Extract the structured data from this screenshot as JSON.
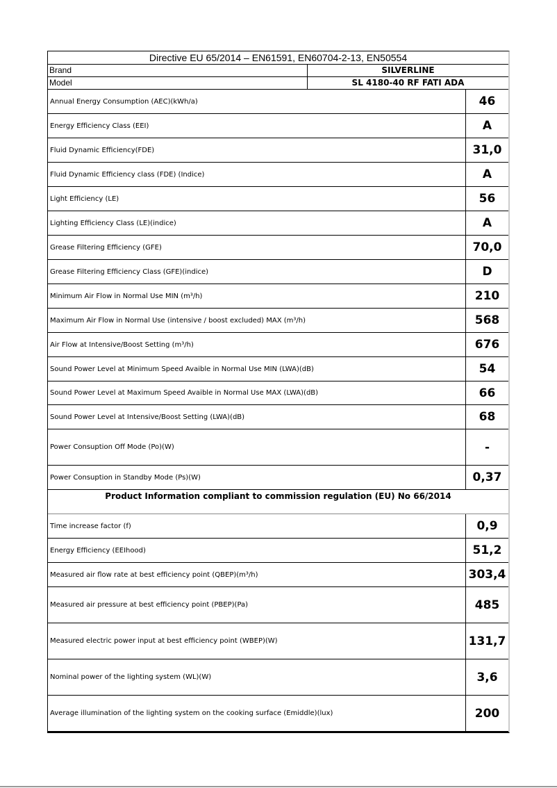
{
  "header": {
    "title": "Directive EU 65/2014 – EN61591, EN60704-2-13, EN50554"
  },
  "brand": {
    "label": "Brand",
    "value": "SILVERLINE"
  },
  "model": {
    "label": "Model",
    "value": "SL 4180-40 RF FATI ADA"
  },
  "rows": [
    {
      "label": "Annual Energy Consumption (AEC)(kWh/a)",
      "value": "46"
    },
    {
      "label": "Energy Efficiency Class (EEI)",
      "value": "A"
    },
    {
      "label": "Fluid Dynamic Efficiency(FDE)",
      "value": "31,0"
    },
    {
      "label": "Fluid Dynamic Efficiency class (FDE) (Indice)",
      "value": "A"
    },
    {
      "label": "Light Efficiency (LE)",
      "value": "56"
    },
    {
      "label": "Lighting Efficiency Class (LE)(indice)",
      "value": "A"
    },
    {
      "label": "Grease Filtering Efficiency (GFE)",
      "value": "70,0"
    },
    {
      "label": "Grease Filtering Efficiency Class (GFE)(indice)",
      "value": "D"
    },
    {
      "label": "Minimum Air Flow in Normal Use MIN (m³/h)",
      "value": "210"
    },
    {
      "label": "Maximum Air Flow in Normal Use  (intensive / boost excluded) MAX (m³/h)",
      "value": "568"
    },
    {
      "label": "Air Flow at Intensive/Boost Setting (m³/h)",
      "value": "676"
    },
    {
      "label": "Sound Power Level at Minimum Speed Avaible in Normal Use MIN (LWA)(dB)",
      "value": "54"
    },
    {
      "label": "Sound Power Level at Maximum Speed Avaible in Normal Use MAX (LWA)(dB)",
      "value": "66"
    },
    {
      "label": "Sound Power Level at Intensive/Boost Setting (LWA)(dB)",
      "value": "68"
    },
    {
      "label": "Power Consuption Off Mode  (Po)(W)",
      "value": "-"
    },
    {
      "label": "Power Consuption in Standby Mode (Ps)(W)",
      "value": "0,37"
    }
  ],
  "section": {
    "title": "Product Information compliant to commission regulation (EU) No 66/2014"
  },
  "rows2": [
    {
      "label": "Time increase factor (f)",
      "value": "0,9"
    },
    {
      "label": "Energy Efficiency (EEIhood)",
      "value": "51,2"
    },
    {
      "label": "Measured air flow rate at best efficiency point (QBEP)(m³/h)",
      "value": "303,4"
    },
    {
      "label": "Measured air pressure at best efficiency point (PBEP)(Pa)",
      "value": "485"
    },
    {
      "label": "Measured electric power input at best efficiency point (WBEP)(W)",
      "value": "131,7"
    },
    {
      "label": "Nominal power of the lighting system (WL)(W)",
      "value": "3,6"
    },
    {
      "label": "Average illumination of the lighting system on the cooking surface (Emiddle)(lux)",
      "value": "200"
    }
  ]
}
